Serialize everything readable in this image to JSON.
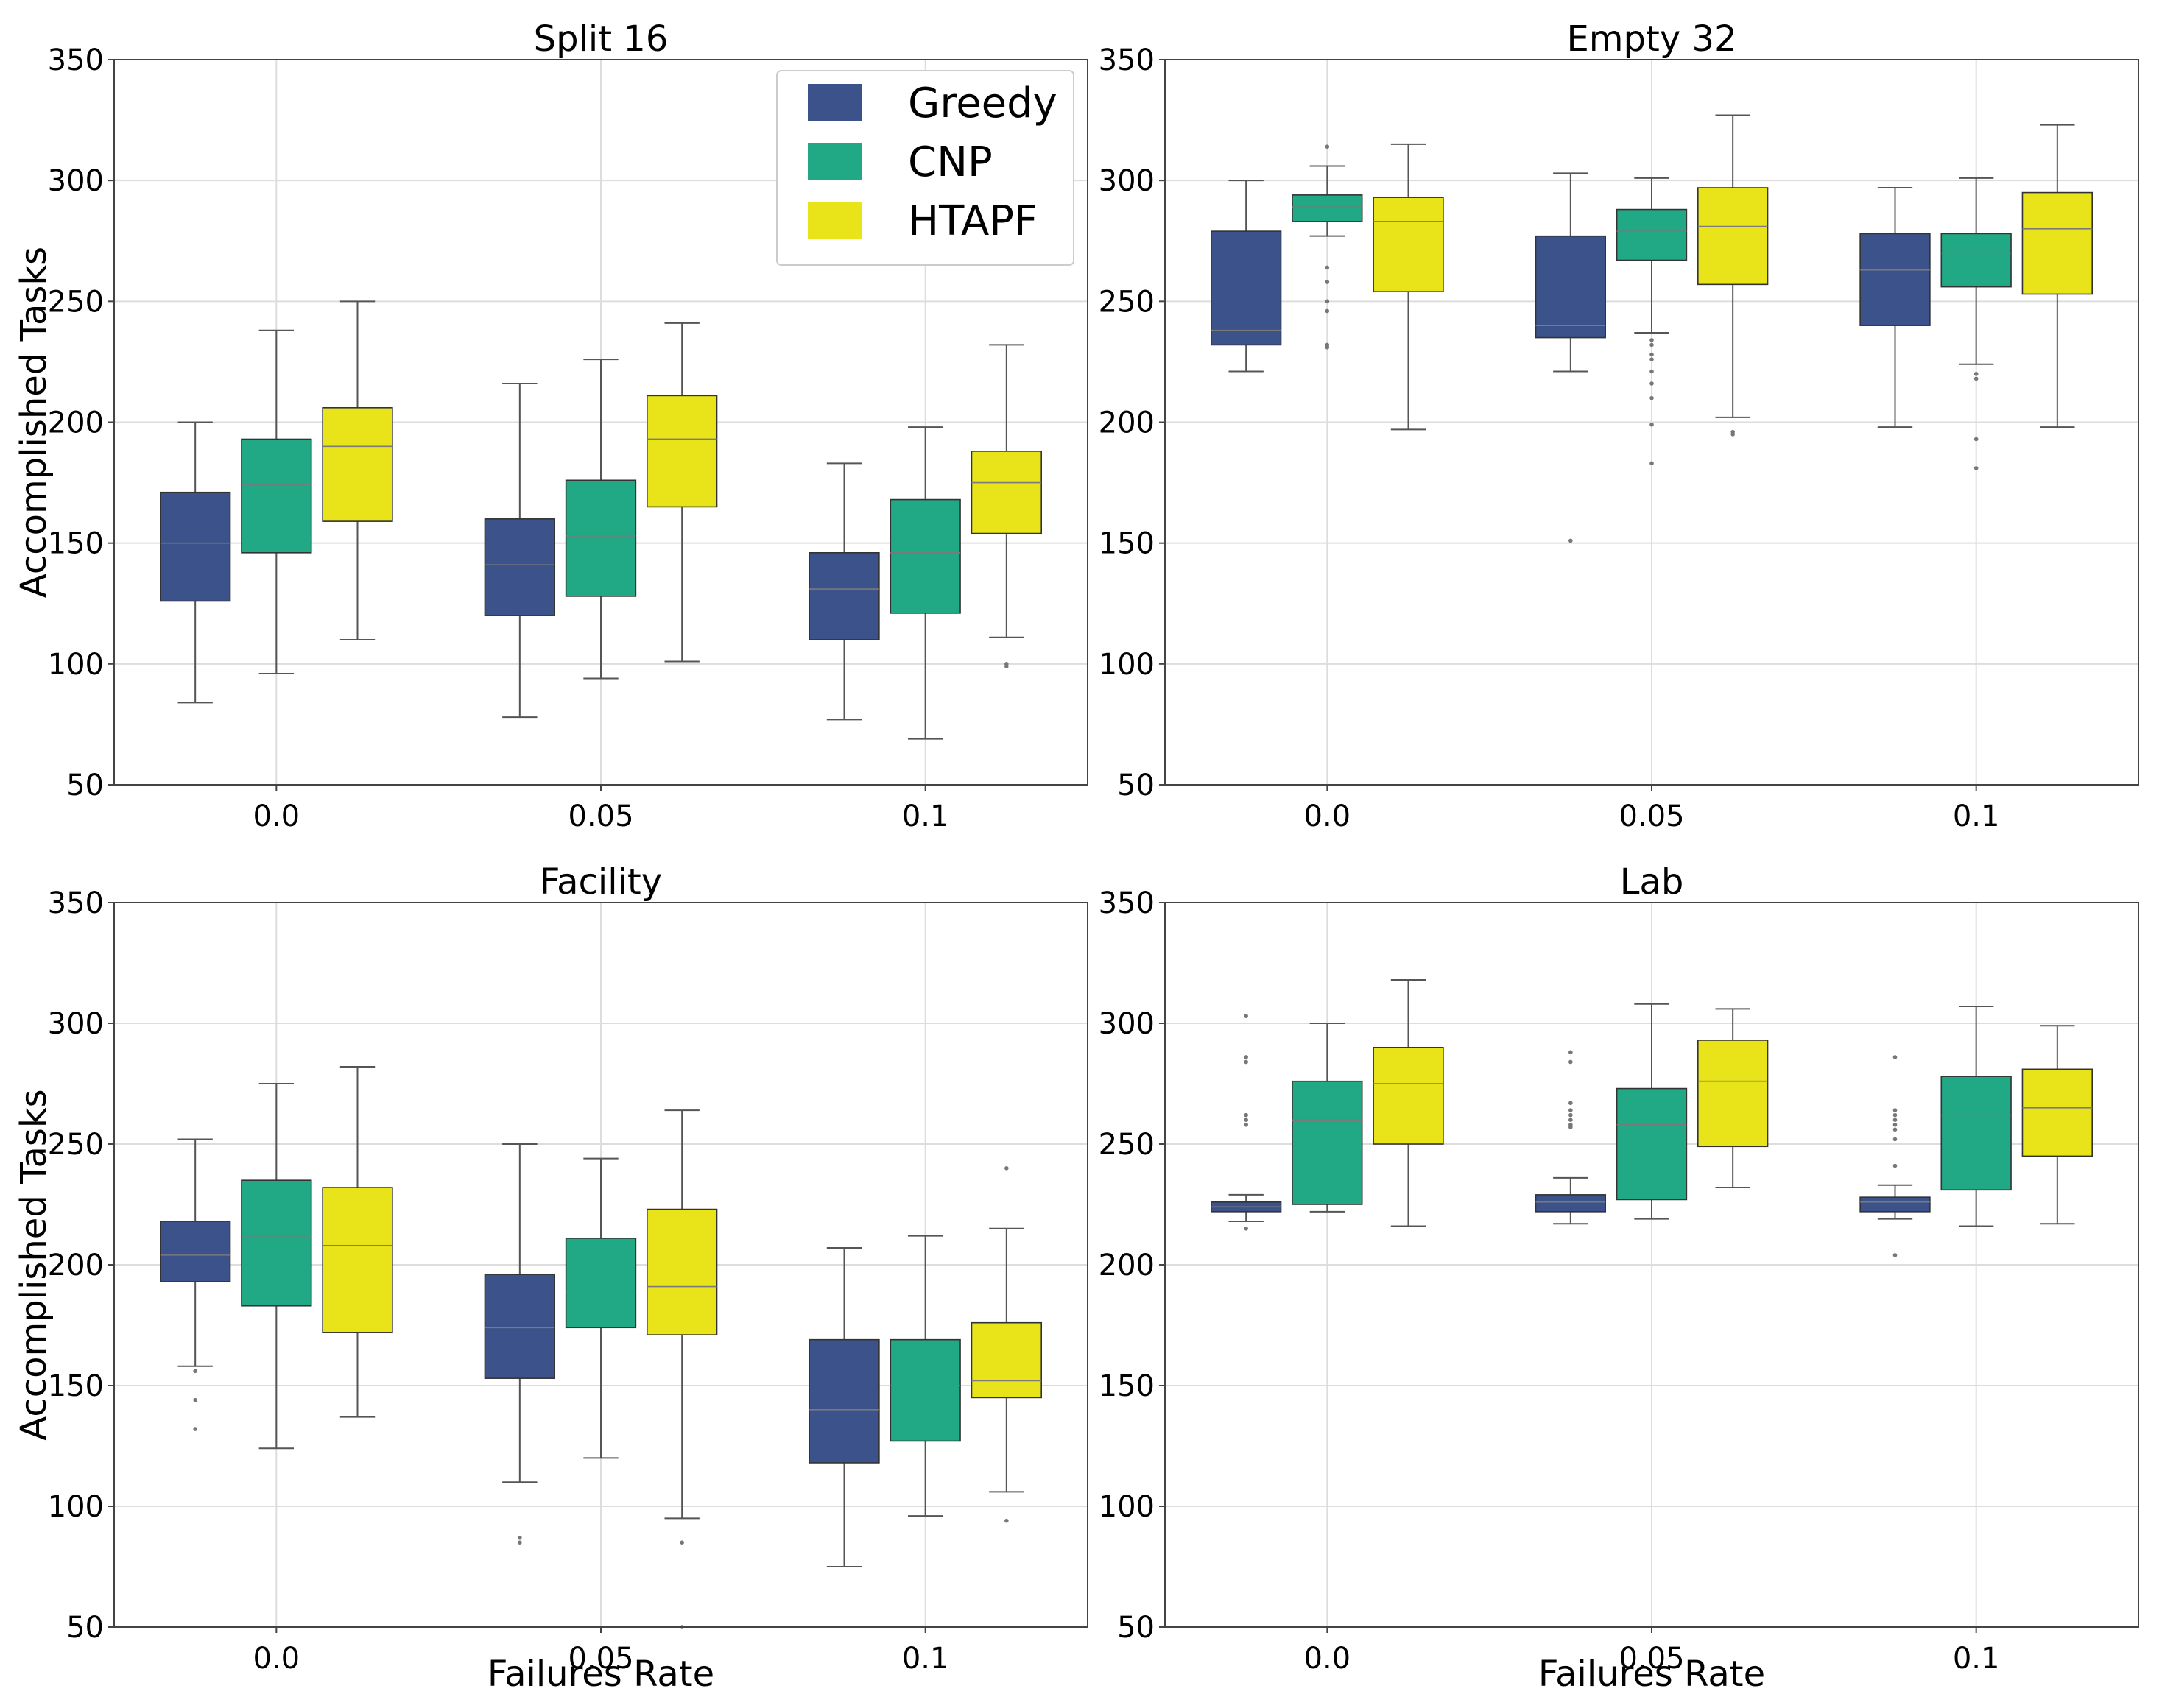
{
  "chart_data": {
    "type": "boxplot",
    "series": [
      {
        "name": "Greedy",
        "color": "#3b528b"
      },
      {
        "name": "CNP",
        "color": "#21a884"
      },
      {
        "name": "HTAPF",
        "color": "#e8e419"
      }
    ],
    "categories": [
      "0.0",
      "0.05",
      "0.1"
    ],
    "yticks": [
      "50",
      "100",
      "150",
      "200",
      "250",
      "300",
      "350"
    ],
    "ylim": [
      50,
      350
    ],
    "grid": true,
    "legend": {
      "location": "top-right",
      "entries": [
        "Greedy",
        "CNP",
        "HTAPF"
      ]
    },
    "panels": [
      {
        "title": "Split 16",
        "xlabel": "",
        "ylabel": "Accomplished Tasks",
        "boxes": [
          [
            {
              "min": 84,
              "q1": 126,
              "median": 150,
              "q3": 171,
              "max": 200,
              "fliers": []
            },
            {
              "min": 96,
              "q1": 146,
              "median": 174,
              "q3": 193,
              "max": 238,
              "fliers": []
            },
            {
              "min": 110,
              "q1": 159,
              "median": 190,
              "q3": 206,
              "max": 250,
              "fliers": []
            }
          ],
          [
            {
              "min": 78,
              "q1": 120,
              "median": 141,
              "q3": 160,
              "max": 216,
              "fliers": []
            },
            {
              "min": 94,
              "q1": 128,
              "median": 153,
              "q3": 176,
              "max": 226,
              "fliers": []
            },
            {
              "min": 101,
              "q1": 165,
              "median": 193,
              "q3": 211,
              "max": 241,
              "fliers": []
            }
          ],
          [
            {
              "min": 77,
              "q1": 110,
              "median": 131,
              "q3": 146,
              "max": 183,
              "fliers": []
            },
            {
              "min": 69,
              "q1": 121,
              "median": 146,
              "q3": 168,
              "max": 198,
              "fliers": []
            },
            {
              "min": 111,
              "q1": 154,
              "median": 175,
              "q3": 188,
              "max": 232,
              "fliers": [
                99,
                100
              ]
            }
          ]
        ]
      },
      {
        "title": "Empty 32",
        "xlabel": "",
        "ylabel": "",
        "boxes": [
          [
            {
              "min": 221,
              "q1": 232,
              "median": 238,
              "q3": 279,
              "max": 300,
              "fliers": []
            },
            {
              "min": 277,
              "q1": 283,
              "median": 289,
              "q3": 294,
              "max": 306,
              "fliers": [
                314,
                264,
                258,
                250,
                246,
                232,
                231
              ]
            },
            {
              "min": 197,
              "q1": 254,
              "median": 283,
              "q3": 293,
              "max": 315,
              "fliers": []
            }
          ],
          [
            {
              "min": 221,
              "q1": 235,
              "median": 240,
              "q3": 277,
              "max": 303,
              "fliers": [
                151
              ]
            },
            {
              "min": 237,
              "q1": 267,
              "median": 279,
              "q3": 288,
              "max": 301,
              "fliers": [
                234,
                232,
                228,
                226,
                221,
                216,
                210,
                199,
                183
              ]
            },
            {
              "min": 202,
              "q1": 257,
              "median": 281,
              "q3": 297,
              "max": 327,
              "fliers": [
                196,
                195
              ]
            }
          ],
          [
            {
              "min": 198,
              "q1": 240,
              "median": 263,
              "q3": 278,
              "max": 297,
              "fliers": []
            },
            {
              "min": 224,
              "q1": 256,
              "median": 270,
              "q3": 278,
              "max": 301,
              "fliers": [
                220,
                218,
                193,
                181
              ]
            },
            {
              "min": 198,
              "q1": 253,
              "median": 280,
              "q3": 295,
              "max": 323,
              "fliers": []
            }
          ]
        ]
      },
      {
        "title": "Facility",
        "xlabel": "Failures Rate",
        "ylabel": "Accomplished Tasks",
        "boxes": [
          [
            {
              "min": 158,
              "q1": 193,
              "median": 204,
              "q3": 218,
              "max": 252,
              "fliers": [
                156,
                144,
                132
              ]
            },
            {
              "min": 124,
              "q1": 183,
              "median": 212,
              "q3": 235,
              "max": 275,
              "fliers": []
            },
            {
              "min": 137,
              "q1": 172,
              "median": 208,
              "q3": 232,
              "max": 282,
              "fliers": []
            }
          ],
          [
            {
              "min": 110,
              "q1": 153,
              "median": 174,
              "q3": 196,
              "max": 250,
              "fliers": [
                87,
                85
              ]
            },
            {
              "min": 120,
              "q1": 174,
              "median": 189,
              "q3": 211,
              "max": 244,
              "fliers": []
            },
            {
              "min": 95,
              "q1": 171,
              "median": 191,
              "q3": 223,
              "max": 264,
              "fliers": [
                85,
                50
              ]
            }
          ],
          [
            {
              "min": 75,
              "q1": 118,
              "median": 140,
              "q3": 169,
              "max": 207,
              "fliers": []
            },
            {
              "min": 96,
              "q1": 127,
              "median": 150,
              "q3": 169,
              "max": 212,
              "fliers": []
            },
            {
              "min": 106,
              "q1": 145,
              "median": 152,
              "q3": 176,
              "max": 215,
              "fliers": [
                240,
                94
              ]
            }
          ]
        ]
      },
      {
        "title": "Lab",
        "xlabel": "Failures Rate",
        "ylabel": "",
        "boxes": [
          [
            {
              "min": 218,
              "q1": 222,
              "median": 224,
              "q3": 226,
              "max": 229,
              "fliers": [
                303,
                286,
                284,
                262,
                260,
                258,
                215
              ]
            },
            {
              "min": 222,
              "q1": 225,
              "median": 260,
              "q3": 276,
              "max": 300,
              "fliers": []
            },
            {
              "min": 216,
              "q1": 250,
              "median": 275,
              "q3": 290,
              "max": 318,
              "fliers": []
            }
          ],
          [
            {
              "min": 217,
              "q1": 222,
              "median": 226,
              "q3": 229,
              "max": 236,
              "fliers": [
                288,
                284,
                267,
                264,
                262,
                260,
                258,
                257
              ]
            },
            {
              "min": 219,
              "q1": 227,
              "median": 258,
              "q3": 273,
              "max": 308,
              "fliers": []
            },
            {
              "min": 232,
              "q1": 249,
              "median": 276,
              "q3": 293,
              "max": 306,
              "fliers": []
            }
          ],
          [
            {
              "min": 219,
              "q1": 222,
              "median": 226,
              "q3": 228,
              "max": 233,
              "fliers": [
                286,
                264,
                262,
                260,
                258,
                256,
                252,
                241,
                204
              ]
            },
            {
              "min": 216,
              "q1": 231,
              "median": 262,
              "q3": 278,
              "max": 307,
              "fliers": []
            },
            {
              "min": 217,
              "q1": 245,
              "median": 265,
              "q3": 281,
              "max": 299,
              "fliers": []
            }
          ]
        ]
      }
    ]
  }
}
